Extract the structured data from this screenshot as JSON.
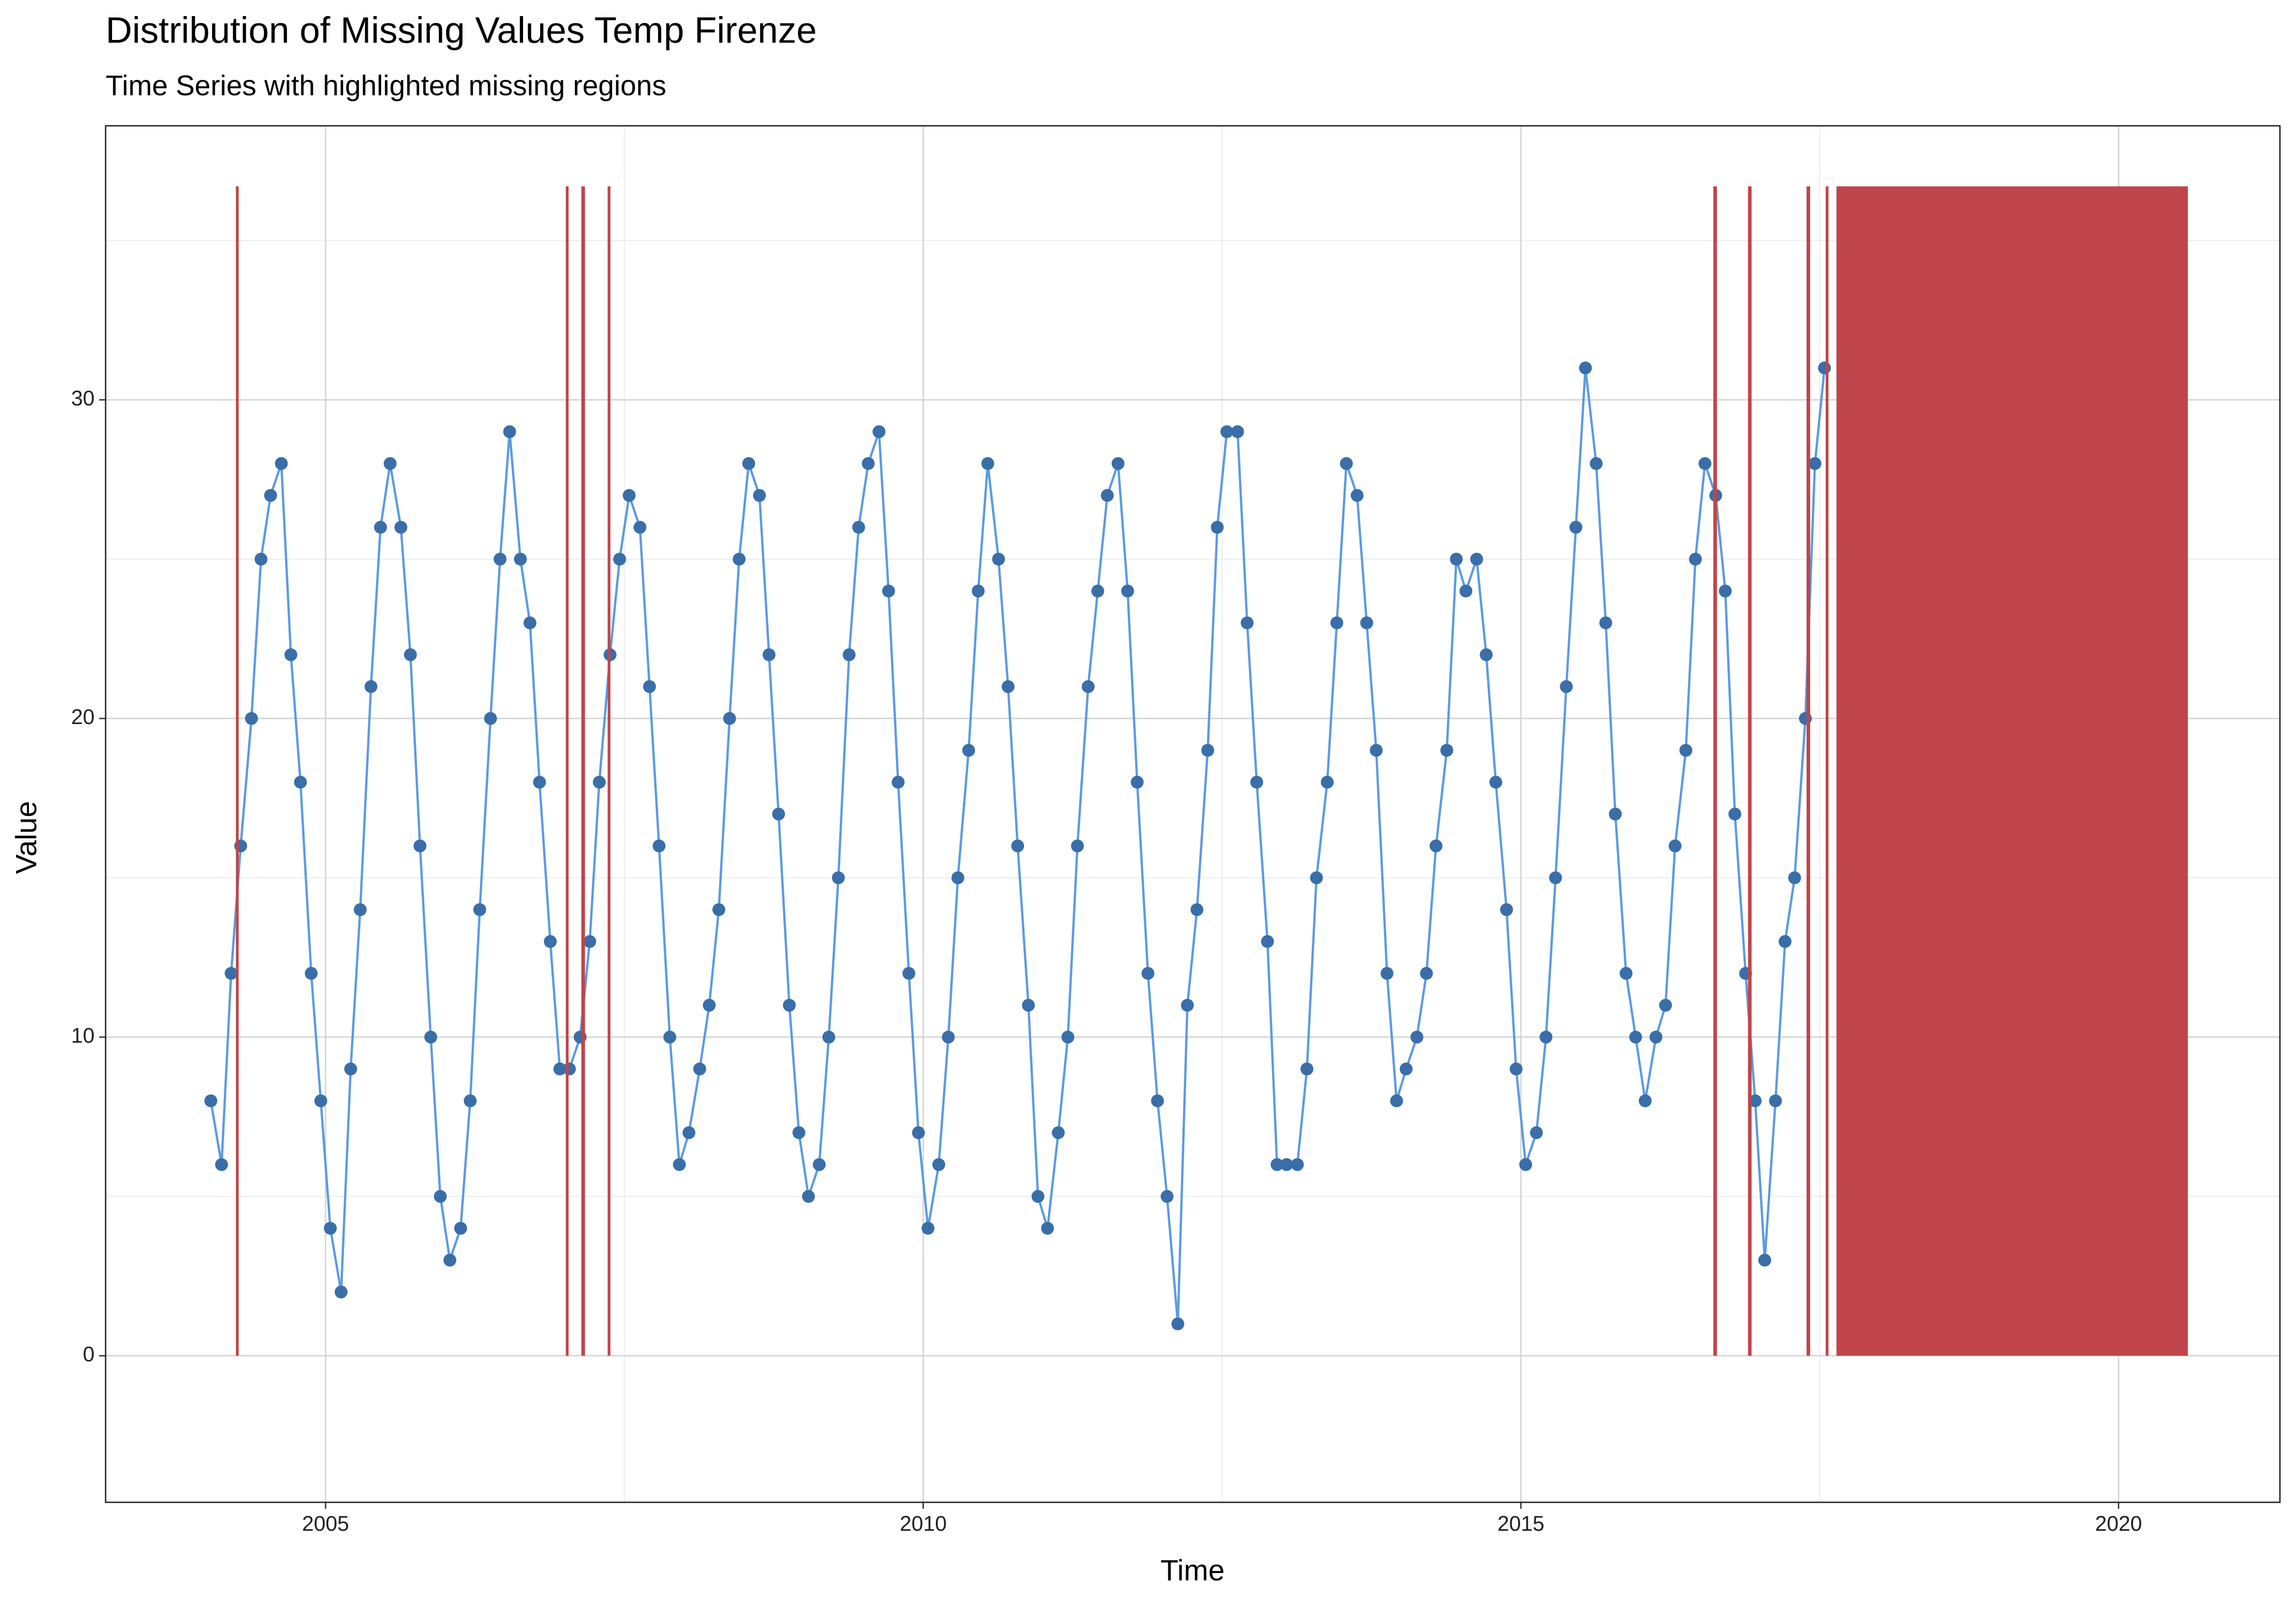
{
  "chart_data": {
    "type": "line",
    "title": "Distribution of Missing Values Temp Firenze",
    "subtitle": "Time Series with highlighted missing regions",
    "x_label": "Time",
    "y_label": "Value",
    "xlim": [
      2003.16,
      2021.35
    ],
    "ylim": [
      -4.6,
      38.6
    ],
    "xticks": [
      2005,
      2010,
      2015,
      2020
    ],
    "yticks": [
      0,
      10,
      20,
      30
    ],
    "xminor": [
      2007.5,
      2012.5,
      2017.5
    ],
    "yminor": [
      5,
      15,
      25,
      35
    ],
    "grid": true,
    "color": "#3a6ea8",
    "line_color": "#5b9be0",
    "missing_color": "#c0454a",
    "missing_range": [
      0,
      36.7
    ],
    "missing_regions": [
      [
        2004.25,
        2004.27
      ],
      [
        2007.01,
        2007.03
      ],
      [
        2007.14,
        2007.17
      ],
      [
        2007.36,
        2007.38
      ],
      [
        2016.61,
        2016.64
      ],
      [
        2016.9,
        2016.93
      ],
      [
        2017.39,
        2017.42
      ],
      [
        2017.55,
        2017.57
      ],
      [
        2017.64,
        2020.58
      ]
    ],
    "x": [
      2004.04,
      2004.13,
      2004.21,
      2004.29,
      2004.38,
      2004.46,
      2004.54,
      2004.63,
      2004.71,
      2004.79,
      2004.88,
      2004.96,
      2005.04,
      2005.13,
      2005.21,
      2005.29,
      2005.38,
      2005.46,
      2005.54,
      2005.63,
      2005.71,
      2005.79,
      2005.88,
      2005.96,
      2006.04,
      2006.13,
      2006.21,
      2006.29,
      2006.38,
      2006.46,
      2006.54,
      2006.63,
      2006.71,
      2006.79,
      2006.88,
      2006.96,
      2007.04,
      2007.13,
      2007.21,
      2007.29,
      2007.38,
      2007.46,
      2007.54,
      2007.63,
      2007.71,
      2007.79,
      2007.88,
      2007.96,
      2008.04,
      2008.13,
      2008.21,
      2008.29,
      2008.38,
      2008.46,
      2008.54,
      2008.63,
      2008.71,
      2008.79,
      2008.88,
      2008.96,
      2009.04,
      2009.13,
      2009.21,
      2009.29,
      2009.38,
      2009.46,
      2009.54,
      2009.63,
      2009.71,
      2009.79,
      2009.88,
      2009.96,
      2010.04,
      2010.13,
      2010.21,
      2010.29,
      2010.38,
      2010.46,
      2010.54,
      2010.63,
      2010.71,
      2010.79,
      2010.88,
      2010.96,
      2011.04,
      2011.13,
      2011.21,
      2011.29,
      2011.38,
      2011.46,
      2011.54,
      2011.63,
      2011.71,
      2011.79,
      2011.88,
      2011.96,
      2012.04,
      2012.13,
      2012.21,
      2012.29,
      2012.38,
      2012.46,
      2012.54,
      2012.63,
      2012.71,
      2012.79,
      2012.88,
      2012.96,
      2013.04,
      2013.13,
      2013.21,
      2013.29,
      2013.38,
      2013.46,
      2013.54,
      2013.63,
      2013.71,
      2013.79,
      2013.88,
      2013.96,
      2014.04,
      2014.13,
      2014.21,
      2014.29,
      2014.38,
      2014.46,
      2014.54,
      2014.63,
      2014.71,
      2014.79,
      2014.88,
      2014.96,
      2015.04,
      2015.13,
      2015.21,
      2015.29,
      2015.38,
      2015.46,
      2015.54,
      2015.63,
      2015.71,
      2015.79,
      2015.88,
      2015.96,
      2016.04,
      2016.13,
      2016.21,
      2016.29,
      2016.38,
      2016.46,
      2016.54,
      2016.63,
      2016.71,
      2016.79,
      2016.88,
      2016.96,
      2017.04,
      2017.13,
      2017.21,
      2017.29,
      2017.38,
      2017.46,
      2017.54
    ],
    "values": [
      8,
      6,
      12,
      16,
      20,
      25,
      27,
      28,
      22,
      18,
      12,
      8,
      4,
      2,
      9,
      14,
      21,
      26,
      28,
      26,
      22,
      16,
      10,
      5,
      3,
      4,
      8,
      14,
      20,
      25,
      29,
      25,
      23,
      18,
      13,
      9,
      9,
      10,
      13,
      18,
      22,
      25,
      27,
      26,
      21,
      16,
      10,
      6,
      7,
      9,
      11,
      14,
      20,
      25,
      28,
      27,
      22,
      17,
      11,
      7,
      5,
      6,
      10,
      15,
      22,
      26,
      28,
      29,
      24,
      18,
      12,
      7,
      4,
      6,
      10,
      15,
      19,
      24,
      28,
      25,
      21,
      16,
      11,
      5,
      4,
      7,
      10,
      16,
      21,
      24,
      27,
      28,
      24,
      18,
      12,
      8,
      5,
      1,
      11,
      14,
      19,
      26,
      29,
      29,
      23,
      18,
      13,
      6,
      6,
      6,
      9,
      15,
      18,
      23,
      28,
      27,
      23,
      19,
      12,
      8,
      9,
      10,
      12,
      16,
      19,
      25,
      24,
      25,
      22,
      18,
      14,
      9,
      6,
      7,
      10,
      15,
      21,
      26,
      31,
      28,
      23,
      17,
      12,
      10,
      8,
      10,
      11,
      16,
      19,
      25,
      28,
      27,
      24,
      17,
      12,
      8,
      3,
      8,
      13,
      15,
      20,
      28,
      31
    ]
  }
}
